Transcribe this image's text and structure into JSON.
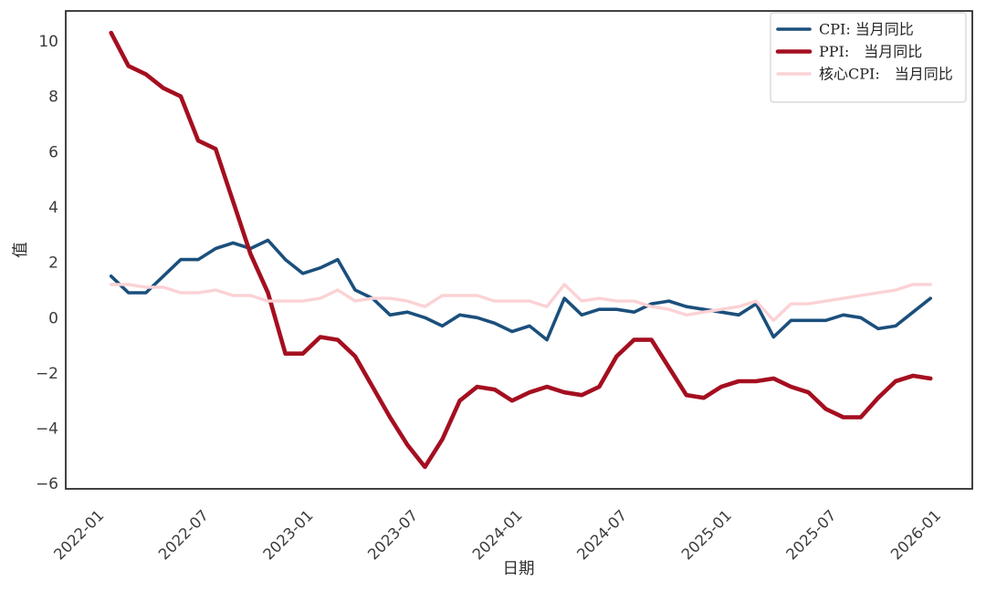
{
  "chart_data": {
    "type": "line",
    "title": "",
    "xlabel": "日期",
    "ylabel": "值",
    "grid": false,
    "legend_position": "upper right",
    "background_color": "#ffffff",
    "ylim": [
      -6.19,
      11.09
    ],
    "xlim_months_from_start": [
      -2.6,
      49.4
    ],
    "y_ticks": [
      10,
      8,
      6,
      4,
      2,
      0,
      -2,
      -4,
      -6
    ],
    "x_tick_labels": [
      "2022-01",
      "2022-07",
      "2023-01",
      "2023-07",
      "2024-01",
      "2024-07",
      "2025-01",
      "2025-07",
      "2026-01"
    ],
    "x": [
      "2021-12",
      "2022-01",
      "2022-02",
      "2022-03",
      "2022-04",
      "2022-05",
      "2022-06",
      "2022-07",
      "2022-08",
      "2022-09",
      "2022-10",
      "2022-11",
      "2022-12",
      "2023-01",
      "2023-02",
      "2023-03",
      "2023-04",
      "2023-05",
      "2023-06",
      "2023-07",
      "2023-08",
      "2023-09",
      "2023-10",
      "2023-11",
      "2023-12",
      "2024-01",
      "2024-02",
      "2024-03",
      "2024-04",
      "2024-05",
      "2024-06",
      "2024-07",
      "2024-08",
      "2024-09",
      "2024-10",
      "2024-11",
      "2024-12",
      "2025-01",
      "2025-02",
      "2025-03",
      "2025-04",
      "2025-05",
      "2025-06",
      "2025-07",
      "2025-08",
      "2025-09",
      "2025-10",
      "2025-11"
    ],
    "series": [
      {
        "name": "CPI: 当月同比",
        "color": "#1B4F7C",
        "linewidth": 3.6,
        "values": [
          1.5,
          0.9,
          0.9,
          1.5,
          2.1,
          2.1,
          2.5,
          2.7,
          2.5,
          2.8,
          2.1,
          1.6,
          1.8,
          2.1,
          1.0,
          0.7,
          0.1,
          0.2,
          0.0,
          -0.3,
          0.1,
          0.0,
          -0.2,
          -0.5,
          -0.3,
          -0.8,
          0.7,
          0.1,
          0.3,
          0.3,
          0.2,
          0.5,
          0.6,
          0.4,
          0.3,
          0.2,
          0.1,
          0.5,
          -0.7,
          -0.1,
          -0.1,
          -0.1,
          0.1,
          0.0,
          -0.4,
          -0.3,
          0.2,
          0.7
        ]
      },
      {
        "name": "PPI:　当月同比",
        "color": "#A40F20",
        "linewidth": 4.6,
        "values": [
          10.3,
          9.1,
          8.8,
          8.3,
          8.0,
          6.4,
          6.1,
          4.2,
          2.3,
          0.9,
          -1.3,
          -1.3,
          -0.7,
          -0.8,
          -1.4,
          -2.5,
          -3.6,
          -4.6,
          -5.4,
          -4.4,
          -3.0,
          -2.5,
          -2.6,
          -3.0,
          -2.7,
          -2.5,
          -2.7,
          -2.8,
          -2.5,
          -1.4,
          -0.8,
          -0.8,
          -1.8,
          -2.8,
          -2.9,
          -2.5,
          -2.3,
          -2.3,
          -2.2,
          -2.5,
          -2.7,
          -3.3,
          -3.6,
          -3.6,
          -2.9,
          -2.3,
          -2.1,
          -2.2
        ]
      },
      {
        "name": "核心CPI:　当月同比",
        "color": "#FBD2D5",
        "linewidth": 3.4,
        "values": [
          1.2,
          1.2,
          1.1,
          1.1,
          0.9,
          0.9,
          1.0,
          0.8,
          0.8,
          0.6,
          0.6,
          0.6,
          0.7,
          1.0,
          0.6,
          0.7,
          0.7,
          0.6,
          0.4,
          0.8,
          0.8,
          0.8,
          0.6,
          0.6,
          0.6,
          0.4,
          1.2,
          0.6,
          0.7,
          0.6,
          0.6,
          0.4,
          0.3,
          0.1,
          0.2,
          0.3,
          0.4,
          0.6,
          -0.1,
          0.5,
          0.5,
          0.6,
          0.7,
          0.8,
          0.9,
          1.0,
          1.2,
          1.2
        ]
      }
    ]
  }
}
